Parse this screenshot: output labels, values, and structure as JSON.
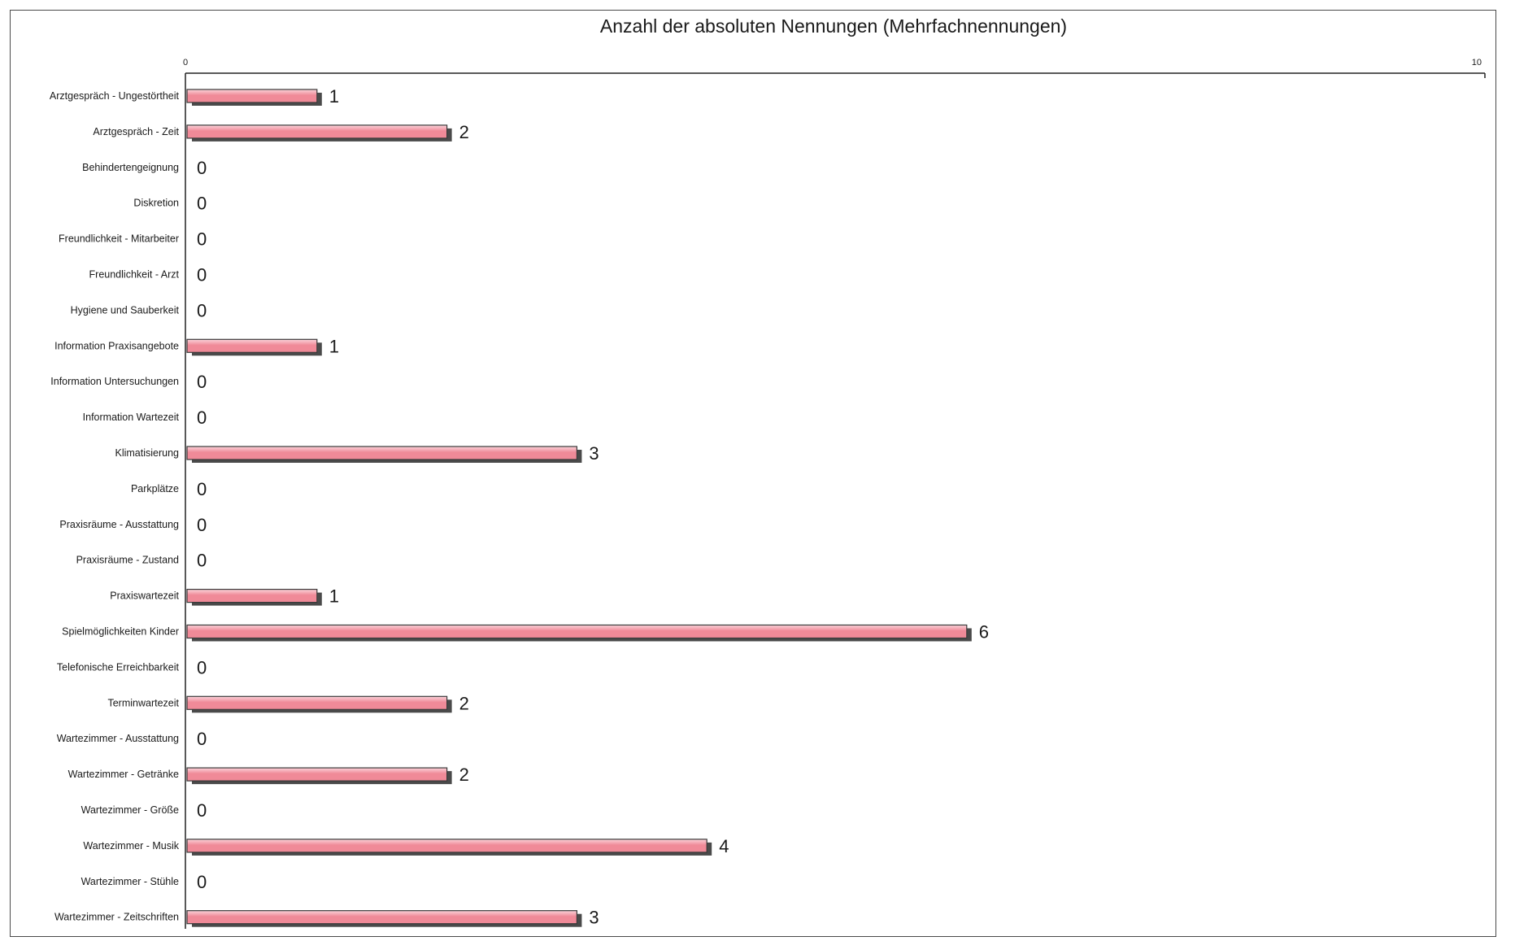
{
  "chart_data": {
    "type": "bar",
    "orientation": "horizontal",
    "title": "Anzahl der absoluten Nennungen  (Mehrfachnennungen)",
    "xlim": [
      0,
      10
    ],
    "x_ticks": [
      "0",
      "10"
    ],
    "grid": false,
    "legend": "none",
    "colors": {
      "bar_fill": "#f08a98",
      "bar_highlight": "#fbd3da",
      "bar_shadow": "#4a4a4a",
      "text": "#1a1a1a"
    },
    "categories": [
      "Arztgespräch - Ungestörtheit",
      "Arztgespräch - Zeit",
      "Behindertengeignung",
      "Diskretion",
      "Freundlichkeit - Mitarbeiter",
      "Freundlichkeit - Arzt",
      "Hygiene und Sauberkeit",
      "Information Praxisangebote",
      "Information Untersuchungen",
      "Information Wartezeit",
      "Klimatisierung",
      "Parkplätze",
      "Praxisräume - Ausstattung",
      "Praxisräume - Zustand",
      "Praxiswartezeit",
      "Spielmöglichkeiten Kinder",
      "Telefonische Erreichbarkeit",
      "Terminwartezeit",
      "Wartezimmer - Ausstattung",
      "Wartezimmer - Getränke",
      "Wartezimmer - Größe",
      "Wartezimmer - Musik",
      "Wartezimmer - Stühle",
      "Wartezimmer - Zeitschriften"
    ],
    "values": [
      1,
      2,
      0,
      0,
      0,
      0,
      0,
      1,
      0,
      0,
      3,
      0,
      0,
      0,
      1,
      6,
      0,
      2,
      0,
      2,
      0,
      4,
      0,
      3
    ]
  }
}
